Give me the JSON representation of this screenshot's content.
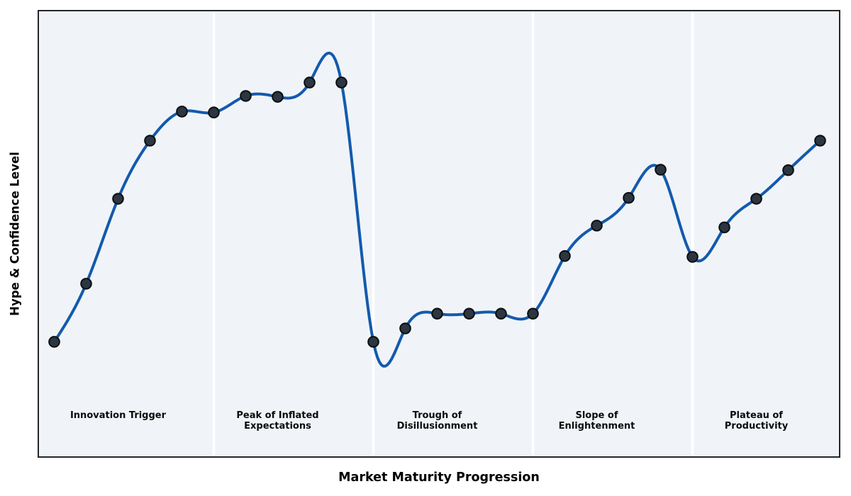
{
  "chart_data": {
    "type": "line",
    "title": "",
    "xlabel": "Market Maturity Progression",
    "ylabel": "Hype & Confidence Level",
    "x": [
      1,
      2,
      3,
      4,
      5,
      6,
      7,
      8,
      9,
      10,
      11,
      12,
      13,
      14,
      15,
      16,
      17,
      18,
      19,
      20,
      21,
      22,
      23,
      24,
      25
    ],
    "y": [
      26,
      39,
      58,
      71,
      77.5,
      77.3,
      81,
      80.8,
      84,
      84,
      26,
      29,
      32.3,
      32.3,
      32.3,
      32.3,
      45.2,
      52,
      58.2,
      64.5,
      45,
      51.6,
      58,
      64.4,
      71
    ],
    "interpolation": "cubic-spline",
    "markers": true,
    "legend": "none",
    "grid": false,
    "ylim": [
      0,
      100
    ],
    "xlim": [
      0.5,
      25.5
    ],
    "phase_dividers_at_x": [
      6,
      11,
      16,
      21
    ],
    "phases": [
      {
        "label": "Innovation Trigger",
        "lines": [
          "Innovation Trigger"
        ],
        "center_x": 3
      },
      {
        "label": "Peak of Inflated Expectations",
        "lines": [
          "Peak of Inflated",
          "Expectations"
        ],
        "center_x": 8
      },
      {
        "label": "Trough of Disillusionment",
        "lines": [
          "Trough of",
          "Disillusionment"
        ],
        "center_x": 13
      },
      {
        "label": "Slope of Enlightenment",
        "lines": [
          "Slope of",
          "Enlightenment"
        ],
        "center_x": 18
      },
      {
        "label": "Plateau of Productivity",
        "lines": [
          "Plateau of",
          "Productivity"
        ],
        "center_x": 23
      }
    ],
    "colors": {
      "line": "#135aad",
      "marker_fill": "#2b3642",
      "marker_edge": "#0b0d0f",
      "plot_bg": "#f0f4f8",
      "figure_bg": "#ffffff",
      "border": "#23272c",
      "divider": "#ffffff",
      "label_text": "#0a0a0a"
    }
  }
}
